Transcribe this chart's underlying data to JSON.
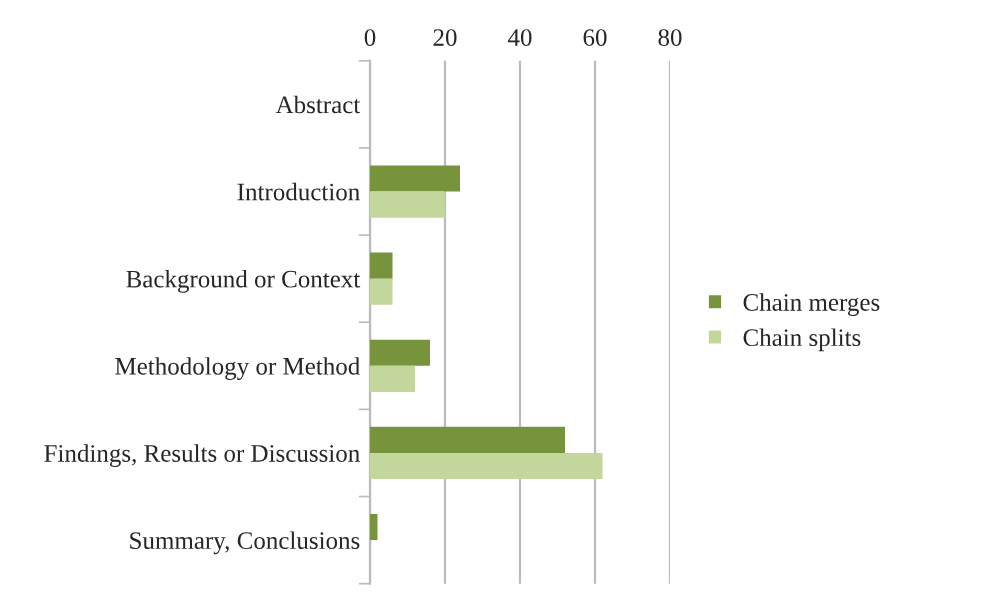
{
  "chart_data": {
    "type": "bar",
    "orientation": "horizontal",
    "categories": [
      "Abstract",
      "Introduction",
      "Background or Context",
      "Methodology or Method",
      "Findings, Results or Discussion",
      "Summary, Conclusions"
    ],
    "series": [
      {
        "name": "Chain merges",
        "color": "#77933c",
        "values": [
          0,
          24,
          6,
          16,
          52,
          2
        ]
      },
      {
        "name": "Chain splits",
        "color": "#c3d69b",
        "values": [
          0,
          20,
          6,
          12,
          62,
          0
        ]
      }
    ],
    "xlim": [
      0,
      80
    ],
    "xticks": [
      0,
      20,
      40,
      60,
      80
    ],
    "grid": "x",
    "legend": "right"
  }
}
